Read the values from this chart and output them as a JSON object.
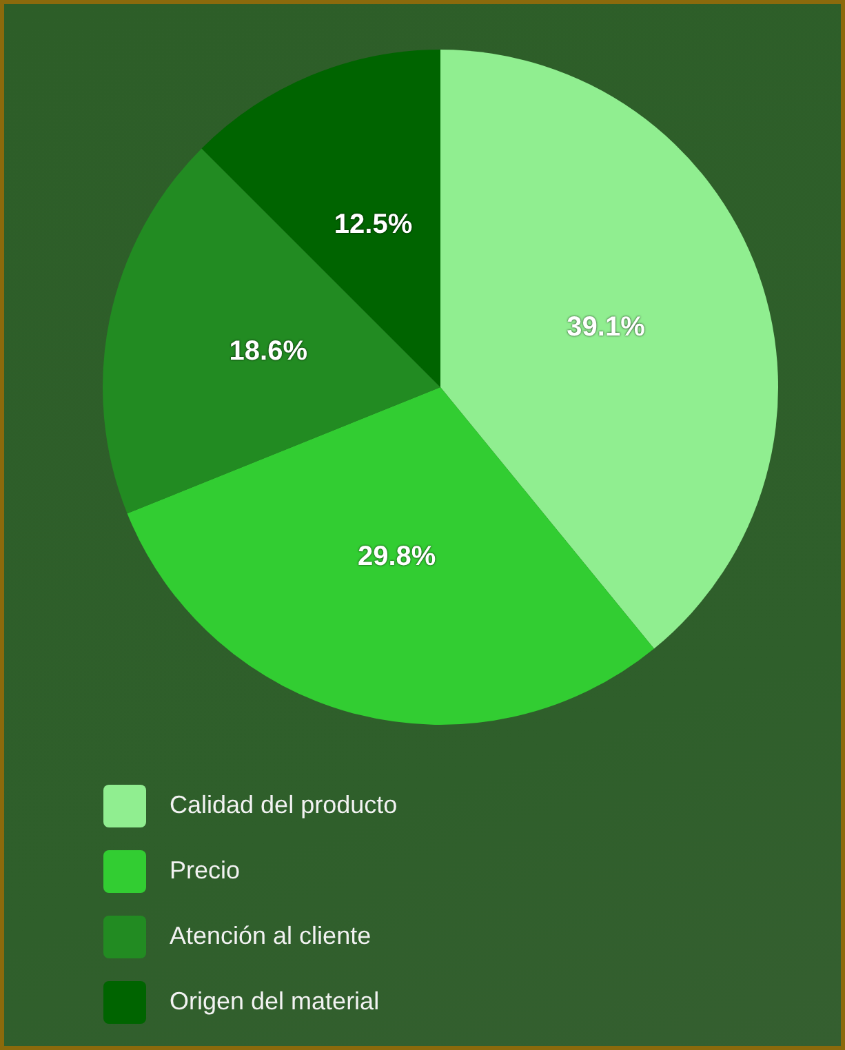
{
  "chart_data": {
    "type": "pie",
    "categories": [
      "Calidad del producto",
      "Precio",
      "Atención al cliente",
      "Origen del material"
    ],
    "values": [
      39.1,
      29.8,
      18.6,
      12.5
    ],
    "colors": [
      "#90ee90",
      "#32cd32",
      "#228b22",
      "#006400"
    ],
    "value_labels": [
      "39.1%",
      "29.8%",
      "18.6%",
      "12.5%"
    ],
    "legend": "bottom left"
  }
}
